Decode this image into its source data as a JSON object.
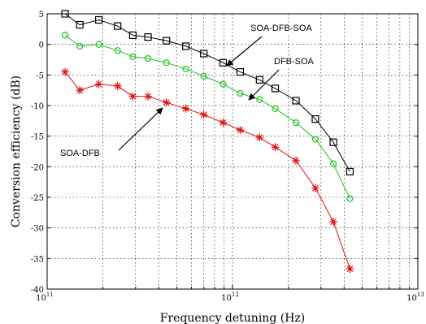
{
  "chart_data": {
    "type": "line",
    "title": "",
    "xlabel": "Frequency detuning (Hz)",
    "ylabel": "Conversion efficiency (dB)",
    "xscale": "log",
    "xlim": [
      100000000000.0,
      10000000000000.0
    ],
    "ylim": [
      -40,
      5
    ],
    "grid": true,
    "xtick_labels": [
      {
        "base": "10",
        "exp": "11"
      },
      {
        "base": "10",
        "exp": "12"
      },
      {
        "base": "10",
        "exp": "13"
      }
    ],
    "yticks": [
      5,
      0,
      -5,
      -10,
      -15,
      -20,
      -25,
      -30,
      -35,
      -40
    ],
    "series": [
      {
        "name": "SOA-DFB-SOA",
        "color": "#000000",
        "marker": "square",
        "x": [
          125000000000.0,
          150000000000.0,
          190000000000.0,
          240000000000.0,
          290000000000.0,
          350000000000.0,
          440000000000.0,
          560000000000.0,
          700000000000.0,
          890000000000.0,
          1100000000000.0,
          1400000000000.0,
          1700000000000.0,
          2200000000000.0,
          2800000000000.0,
          3500000000000.0,
          4300000000000.0
        ],
        "y": [
          5,
          3.2,
          4,
          3,
          1.5,
          1.2,
          0.6,
          -0.3,
          -1.5,
          -3,
          -4.5,
          -5.8,
          -7.2,
          -9.2,
          -12.2,
          -16,
          -20.8
        ]
      },
      {
        "name": "DFB-SOA",
        "color": "#22c022",
        "marker": "circle",
        "x": [
          125000000000.0,
          150000000000.0,
          190000000000.0,
          240000000000.0,
          290000000000.0,
          350000000000.0,
          440000000000.0,
          560000000000.0,
          700000000000.0,
          890000000000.0,
          1100000000000.0,
          1400000000000.0,
          1700000000000.0,
          2200000000000.0,
          2800000000000.0,
          3500000000000.0,
          4300000000000.0
        ],
        "y": [
          1.5,
          -0.3,
          0,
          -1,
          -2,
          -2.3,
          -3,
          -4,
          -5.2,
          -6.5,
          -8,
          -9,
          -10.5,
          -12.8,
          -15.5,
          -19.5,
          -25.2
        ]
      },
      {
        "name": "SOA-DFB",
        "color": "#dd1111",
        "marker": "star",
        "x": [
          125000000000.0,
          150000000000.0,
          190000000000.0,
          240000000000.0,
          290000000000.0,
          350000000000.0,
          440000000000.0,
          560000000000.0,
          700000000000.0,
          890000000000.0,
          1100000000000.0,
          1400000000000.0,
          1700000000000.0,
          2200000000000.0,
          2800000000000.0,
          3500000000000.0,
          4300000000000.0
        ],
        "y": [
          -4.5,
          -7.5,
          -6.5,
          -6.8,
          -8.5,
          -8.5,
          -9.5,
          -10.5,
          -11.5,
          -12.8,
          -14,
          -15.2,
          -16.8,
          -19,
          -23.5,
          -29,
          -36.7
        ]
      }
    ],
    "annotations": [
      {
        "text": "SOA-DFB-SOA",
        "series": 0
      },
      {
        "text": "DFB-SOA",
        "series": 1
      },
      {
        "text": "SOA-DFB",
        "series": 2
      }
    ]
  }
}
